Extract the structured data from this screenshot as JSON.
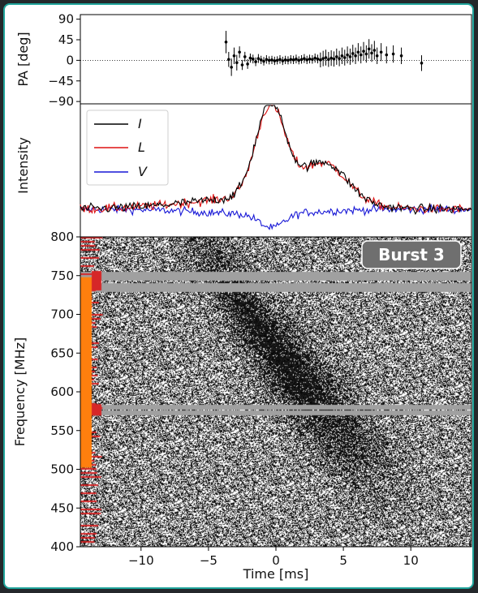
{
  "colors": {
    "background": "#24282b",
    "frame": "#1fa39a",
    "I": "#000000",
    "L": "#dd1111",
    "V": "#1717d6",
    "mask_orange": "#ff7f0e",
    "mask_red": "#d62728",
    "badge": "#6f6f6f"
  },
  "chart_data": [
    {
      "type": "scatter",
      "panel": "pa",
      "ylabel": "PA [deg]",
      "xlim": [
        -14.5,
        14.5
      ],
      "ylim": [
        -95,
        100
      ],
      "yticks": [
        90,
        45,
        0,
        -45,
        -90
      ],
      "ytick_labels": [
        "90",
        "45",
        "0",
        "−45",
        "−90"
      ],
      "zero_line": "dotted",
      "x_range_points": [
        -3.7,
        10.8
      ],
      "series": [
        {
          "points": [
            [
              -3.7,
              40
            ],
            [
              -3.5,
              2
            ],
            [
              -3.3,
              -15
            ],
            [
              -3.1,
              10
            ],
            [
              -2.9,
              -5
            ],
            [
              -2.7,
              18
            ],
            [
              -2.5,
              -10
            ],
            [
              -2.3,
              8
            ],
            [
              -2.1,
              -8
            ],
            [
              -1.9,
              5
            ],
            [
              -1.7,
              3
            ],
            [
              -1.5,
              -3
            ],
            [
              -1.3,
              4
            ],
            [
              -1.1,
              1
            ],
            [
              -0.9,
              -2
            ],
            [
              -0.7,
              2
            ],
            [
              -0.5,
              0
            ],
            [
              -0.3,
              1
            ],
            [
              -0.1,
              -1
            ],
            [
              0.1,
              0
            ],
            [
              0.3,
              2
            ],
            [
              0.5,
              -1
            ],
            [
              0.7,
              1
            ],
            [
              0.9,
              0
            ],
            [
              1.1,
              2
            ],
            [
              1.3,
              1
            ],
            [
              1.5,
              3
            ],
            [
              1.7,
              0
            ],
            [
              1.9,
              2
            ],
            [
              2.1,
              4
            ],
            [
              2.3,
              1
            ],
            [
              2.5,
              3
            ],
            [
              2.7,
              2
            ],
            [
              2.9,
              5
            ],
            [
              3.1,
              3
            ],
            [
              3.3,
              1
            ],
            [
              3.5,
              4
            ],
            [
              3.7,
              6
            ],
            [
              3.9,
              2
            ],
            [
              4.1,
              5
            ],
            [
              4.3,
              3
            ],
            [
              4.5,
              8
            ],
            [
              4.7,
              4
            ],
            [
              4.9,
              10
            ],
            [
              5.1,
              6
            ],
            [
              5.3,
              12
            ],
            [
              5.5,
              8
            ],
            [
              5.7,
              15
            ],
            [
              5.9,
              10
            ],
            [
              6.1,
              18
            ],
            [
              6.3,
              12
            ],
            [
              6.5,
              20
            ],
            [
              6.7,
              14
            ],
            [
              6.9,
              25
            ],
            [
              7.1,
              16
            ],
            [
              7.3,
              22
            ],
            [
              7.5,
              10
            ],
            [
              7.8,
              18
            ],
            [
              8.2,
              12
            ],
            [
              8.7,
              14
            ],
            [
              9.3,
              10
            ],
            [
              10.8,
              -6
            ]
          ]
        }
      ]
    },
    {
      "type": "line",
      "panel": "intensity",
      "ylabel": "Intensity",
      "xlim": [
        -14.5,
        14.5
      ],
      "legend_position": "upper-left",
      "series": [
        {
          "name": "I",
          "color": "#000000"
        },
        {
          "name": "L",
          "color": "#dd1111"
        },
        {
          "name": "V",
          "color": "#1717d6"
        }
      ],
      "profile_components": [
        {
          "series": "I",
          "center": -0.4,
          "width": 1.1,
          "amplitude": 1.0
        },
        {
          "series": "I",
          "center": 3.6,
          "width": 1.7,
          "amplitude": 0.43
        },
        {
          "series": "I",
          "center": -1.5,
          "width": 5.0,
          "amplitude": 0.12
        },
        {
          "series": "L",
          "center": -0.4,
          "width": 1.1,
          "amplitude": 0.97
        },
        {
          "series": "L",
          "center": 3.6,
          "width": 1.7,
          "amplitude": 0.42
        },
        {
          "series": "L",
          "center": -1.5,
          "width": 5.0,
          "amplitude": 0.12
        },
        {
          "series": "V",
          "center": -0.3,
          "width": 0.9,
          "amplitude": -0.15
        },
        {
          "series": "V",
          "center": -1.5,
          "width": 4.0,
          "amplitude": -0.05
        }
      ]
    },
    {
      "type": "heatmap",
      "panel": "dynamic-spectrum",
      "xlabel": "Time [ms]",
      "ylabel": "Frequency [MHz]",
      "xlim": [
        -14.5,
        14.5
      ],
      "ylim": [
        400,
        800
      ],
      "xticks": [
        -10,
        -5,
        0,
        5,
        10
      ],
      "xtick_labels": [
        "−10",
        "−5",
        "0",
        "5",
        "10"
      ],
      "yticks": [
        800,
        750,
        700,
        650,
        600,
        550,
        500,
        450,
        400
      ],
      "ytick_labels": [
        "800",
        "750",
        "700",
        "650",
        "600",
        "550",
        "500",
        "450",
        "400"
      ],
      "badge": "Burst 3",
      "masked_bands_mhz": [
        [
          729,
          741
        ],
        [
          744,
          756
        ],
        [
          570,
          576
        ],
        [
          578,
          584
        ]
      ],
      "mask_orange_mhz": [
        502,
        748
      ],
      "burst_components": [
        {
          "t0": -1.0,
          "f0": 670,
          "slope_ms_per_mhz": -0.035,
          "width_ms": 1.4,
          "bw_mhz": 60,
          "amp": 0.9
        },
        {
          "t0": 3.5,
          "f0": 600,
          "slope_ms_per_mhz": -0.03,
          "width_ms": 1.6,
          "bw_mhz": 40,
          "amp": 0.5
        },
        {
          "t0": 7.0,
          "f0": 520,
          "slope_ms_per_mhz": -0.03,
          "width_ms": 1.8,
          "bw_mhz": 25,
          "amp": 0.25
        }
      ]
    }
  ]
}
